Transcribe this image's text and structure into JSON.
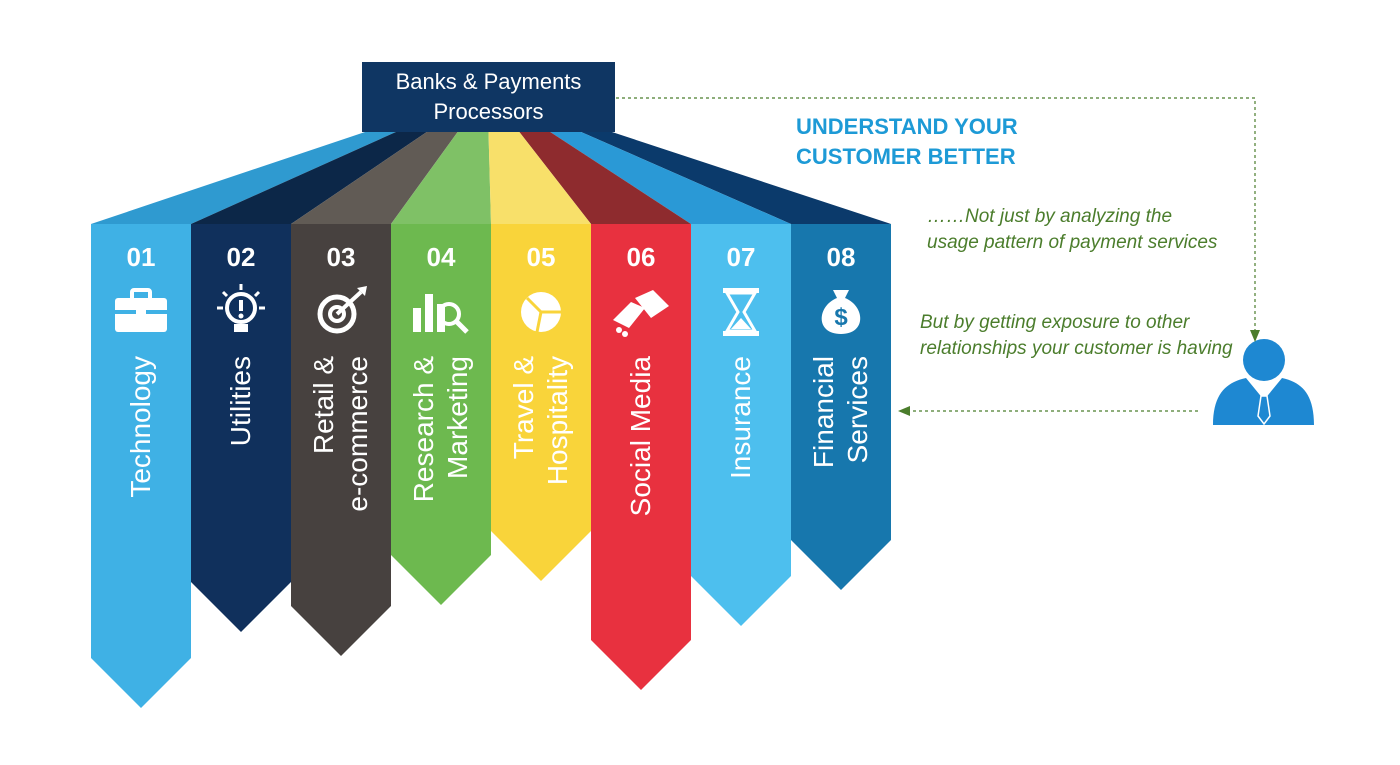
{
  "hub": {
    "label": "Banks & Payments\nProcessors"
  },
  "heading": {
    "text": "UNDERSTAND  YOUR\nCUSTOMER BETTER"
  },
  "notes": {
    "first": "……Not just by analyzing the usage pattern of payment services",
    "second": "But by getting exposure to other relationships  your customer is having"
  },
  "sectors": [
    {
      "number": "01",
      "lines": [
        "Technology"
      ],
      "icon": "briefcase-icon",
      "color": "#3fb1e5",
      "top": "#2f9ad0"
    },
    {
      "number": "02",
      "lines": [
        "Utilities"
      ],
      "icon": "lightbulb-icon",
      "color": "#10305c",
      "top": "#0c2748"
    },
    {
      "number": "03",
      "lines": [
        "Retail &",
        "e-commerce"
      ],
      "icon": "target-icon",
      "color": "#47413f",
      "top": "#615b55"
    },
    {
      "number": "04",
      "lines": [
        "Research &",
        "Marketing"
      ],
      "icon": "analytics-icon",
      "color": "#6db94f",
      "top": "#7fc166"
    },
    {
      "number": "05",
      "lines": [
        "Travel &",
        "Hospitality"
      ],
      "icon": "pie-chart-icon",
      "color": "#f9d43a",
      "top": "#f8e06a"
    },
    {
      "number": "06",
      "lines": [
        "Social Media"
      ],
      "icon": "handshake-icon",
      "color": "#e8313f",
      "top": "#8e2b2e"
    },
    {
      "number": "07",
      "lines": [
        "Insurance"
      ],
      "icon": "hourglass-icon",
      "color": "#4dbfee",
      "top": "#2a99d6"
    },
    {
      "number": "08",
      "lines": [
        "Financial",
        "Services"
      ],
      "icon": "money-bag-icon",
      "color": "#1777ad",
      "top": "#0b3a6b"
    }
  ],
  "colors": {
    "hub": "#0f3663",
    "heading": "#1d9ad6",
    "notes": "#4b7d2c",
    "person": "#1e88d2",
    "connector": "#4b7d2c"
  }
}
